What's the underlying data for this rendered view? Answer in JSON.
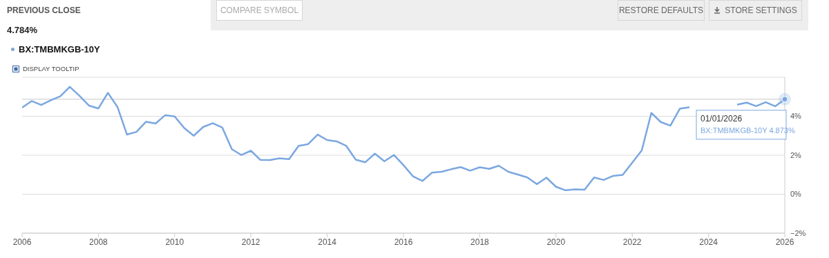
{
  "chart_data": {
    "type": "line",
    "title": "PREVIOUS CLOSE",
    "subtitle": "4.784%",
    "annotations": [
      "COMPARE SYMBOL",
      "RESTORE DEFAULTS",
      "STORE SETTINGS",
      "DISPLAY TOOLTIP",
      "01/01/2026",
      "BX:TMBMKGB-10Y 4.873%"
    ],
    "x": [
      2006,
      2006.25,
      2006.5,
      2006.75,
      2007,
      2007.25,
      2007.5,
      2007.75,
      2008,
      2008.25,
      2008.5,
      2008.75,
      2009,
      2009.25,
      2009.5,
      2009.75,
      2010,
      2010.25,
      2010.5,
      2010.75,
      2011,
      2011.25,
      2011.5,
      2011.75,
      2012,
      2012.25,
      2012.5,
      2012.75,
      2013,
      2013.25,
      2013.5,
      2013.75,
      2014,
      2014.25,
      2014.5,
      2014.75,
      2015,
      2015.25,
      2015.5,
      2015.75,
      2016,
      2016.25,
      2016.5,
      2016.75,
      2017,
      2017.25,
      2017.5,
      2017.75,
      2018,
      2018.25,
      2018.5,
      2018.75,
      2019,
      2019.25,
      2019.5,
      2019.75,
      2020,
      2020.25,
      2020.5,
      2020.75,
      2021,
      2021.25,
      2021.5,
      2021.75,
      2022,
      2022.25,
      2022.5,
      2022.75,
      2023,
      2023.25,
      2023.5,
      2023.75,
      2024,
      2024.25,
      2024.5,
      2024.75,
      2025,
      2025.25,
      2025.5,
      2025.75,
      2026
    ],
    "series": [
      {
        "name": "BX:TMBMKGB-10Y",
        "color": "#7aa7e0",
        "values": [
          4.44,
          4.78,
          4.58,
          4.82,
          5.02,
          5.51,
          5.06,
          4.55,
          4.4,
          5.2,
          4.48,
          3.06,
          3.2,
          3.72,
          3.63,
          4.05,
          3.99,
          3.4,
          3.0,
          3.45,
          3.64,
          3.42,
          2.31,
          2.01,
          2.23,
          1.76,
          1.75,
          1.84,
          1.8,
          2.48,
          2.57,
          3.06,
          2.78,
          2.71,
          2.48,
          1.77,
          1.64,
          2.08,
          1.69,
          2.01,
          1.49,
          0.92,
          0.68,
          1.11,
          1.15,
          1.28,
          1.39,
          1.21,
          1.38,
          1.3,
          1.46,
          1.15,
          1.01,
          0.86,
          0.51,
          0.85,
          0.38,
          0.2,
          0.25,
          0.23,
          0.86,
          0.73,
          0.94,
          0.99,
          1.62,
          2.25,
          4.17,
          3.7,
          3.52,
          4.39,
          4.46,
          null,
          null,
          null,
          null,
          4.59,
          4.7,
          4.52,
          4.72,
          4.51,
          4.873
        ]
      }
    ],
    "xlim": [
      2006,
      2026
    ],
    "xticks": [
      2006,
      2008,
      2010,
      2012,
      2014,
      2016,
      2018,
      2020,
      2022,
      2024,
      2026
    ],
    "ylim": [
      -2,
      6
    ],
    "yticks": [
      {
        "value": -2,
        "label": "−2%"
      },
      {
        "value": 0,
        "label": "0%"
      },
      {
        "value": 2,
        "label": "2%"
      },
      {
        "value": 4,
        "label": "4%"
      },
      {
        "value": 6,
        "label": null
      }
    ],
    "ref_lines": [
      {
        "axis": "y",
        "value": 4.873,
        "color": "#c8c8c8"
      }
    ],
    "grid": "y",
    "legend": "top left",
    "marker": "none",
    "line_style": "solid"
  }
}
